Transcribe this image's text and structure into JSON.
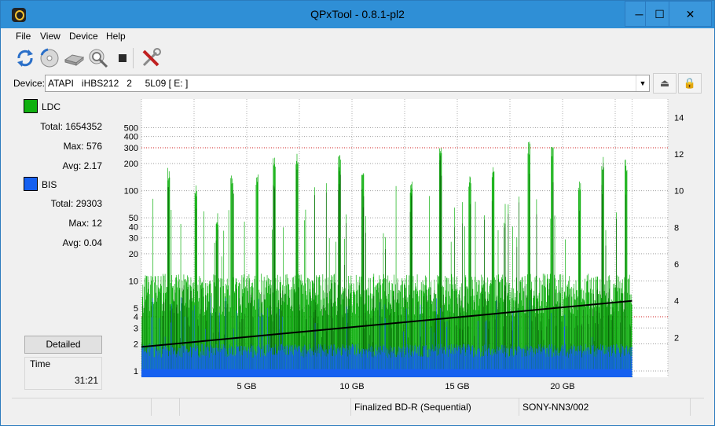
{
  "window": {
    "title": "QPxTool - 0.8.1-pl2",
    "min_glyph": "─",
    "max_glyph": "☐",
    "close_glyph": "✕"
  },
  "menu": [
    "File",
    "View",
    "Device",
    "Help"
  ],
  "toolbar": {
    "icons": [
      "refresh-icon",
      "disc-scan-icon",
      "drive-icon",
      "disc-search-icon",
      "stop-icon",
      "settings-tools-icon"
    ]
  },
  "device": {
    "label": "Device:",
    "value": "ATAPI   iHBS212   2     5L09 [ E: ]",
    "arrow": "▼",
    "eject_glyph": "⏏",
    "lock_glyph": "🔒"
  },
  "stats": {
    "ldc": {
      "name": "LDC",
      "color": "#10b010",
      "total": "Total: 1654352",
      "max": "Max: 576",
      "avg": "Avg: 2.17"
    },
    "bis": {
      "name": "BIS",
      "color": "#1560f0",
      "total": "Total: 29303",
      "max": "Max: 12",
      "avg": "Avg: 0.04"
    }
  },
  "detailed_label": "Detailed",
  "time": {
    "label": "Time",
    "value": "31:21"
  },
  "chart_data": {
    "type": "bar",
    "left_axis": {
      "scale": "log",
      "ticks": [
        "1",
        "2",
        "3",
        "4",
        "5",
        "10",
        "20",
        "30",
        "40",
        "50",
        "100",
        "200",
        "300",
        "400",
        "500"
      ],
      "values": [
        1,
        2,
        3,
        4,
        5,
        10,
        20,
        30,
        40,
        50,
        100,
        200,
        300,
        400,
        500
      ]
    },
    "right_axis": {
      "ticks": [
        "2",
        "4",
        "6",
        "8",
        "10",
        "12",
        "14"
      ],
      "values": [
        2,
        4,
        6,
        8,
        10,
        12,
        14
      ]
    },
    "x_axis": {
      "ticks": [
        "5 GB",
        "10 GB",
        "15 GB",
        "20 GB"
      ],
      "values": [
        5,
        10,
        15,
        20
      ],
      "max": 25
    },
    "data_extent_gb": 23.3,
    "series": [
      {
        "name": "LDC",
        "color": "#10b010",
        "typical": 8,
        "peaks": [
          {
            "gb": 1.3,
            "v": 180
          },
          {
            "gb": 2.6,
            "v": 120
          },
          {
            "gb": 3.6,
            "v": 60
          },
          {
            "gb": 4.3,
            "v": 150
          },
          {
            "gb": 5.5,
            "v": 160
          },
          {
            "gb": 6.3,
            "v": 250
          },
          {
            "gb": 7.4,
            "v": 280
          },
          {
            "gb": 9.4,
            "v": 260
          },
          {
            "gb": 10.5,
            "v": 160
          },
          {
            "gb": 12.8,
            "v": 130
          },
          {
            "gb": 14.2,
            "v": 320
          },
          {
            "gb": 15.6,
            "v": 150
          },
          {
            "gb": 16.7,
            "v": 200
          },
          {
            "gb": 18.4,
            "v": 360
          },
          {
            "gb": 19.5,
            "v": 340
          },
          {
            "gb": 20.8,
            "v": 130
          },
          {
            "gb": 21.9,
            "v": 240
          },
          {
            "gb": 23.0,
            "v": 230
          }
        ]
      },
      {
        "name": "BIS",
        "color": "#1560f0",
        "typical": 2
      }
    ],
    "trend": {
      "color": "#000000",
      "start": 1.85,
      "end": 6.0,
      "axis": "left"
    },
    "threshold_line": {
      "color": "#d02020",
      "value": 300
    }
  },
  "status": {
    "cells": [
      "",
      "",
      "",
      "Finalized BD-R (Sequential)",
      "SONY-NN3/002",
      ""
    ]
  }
}
